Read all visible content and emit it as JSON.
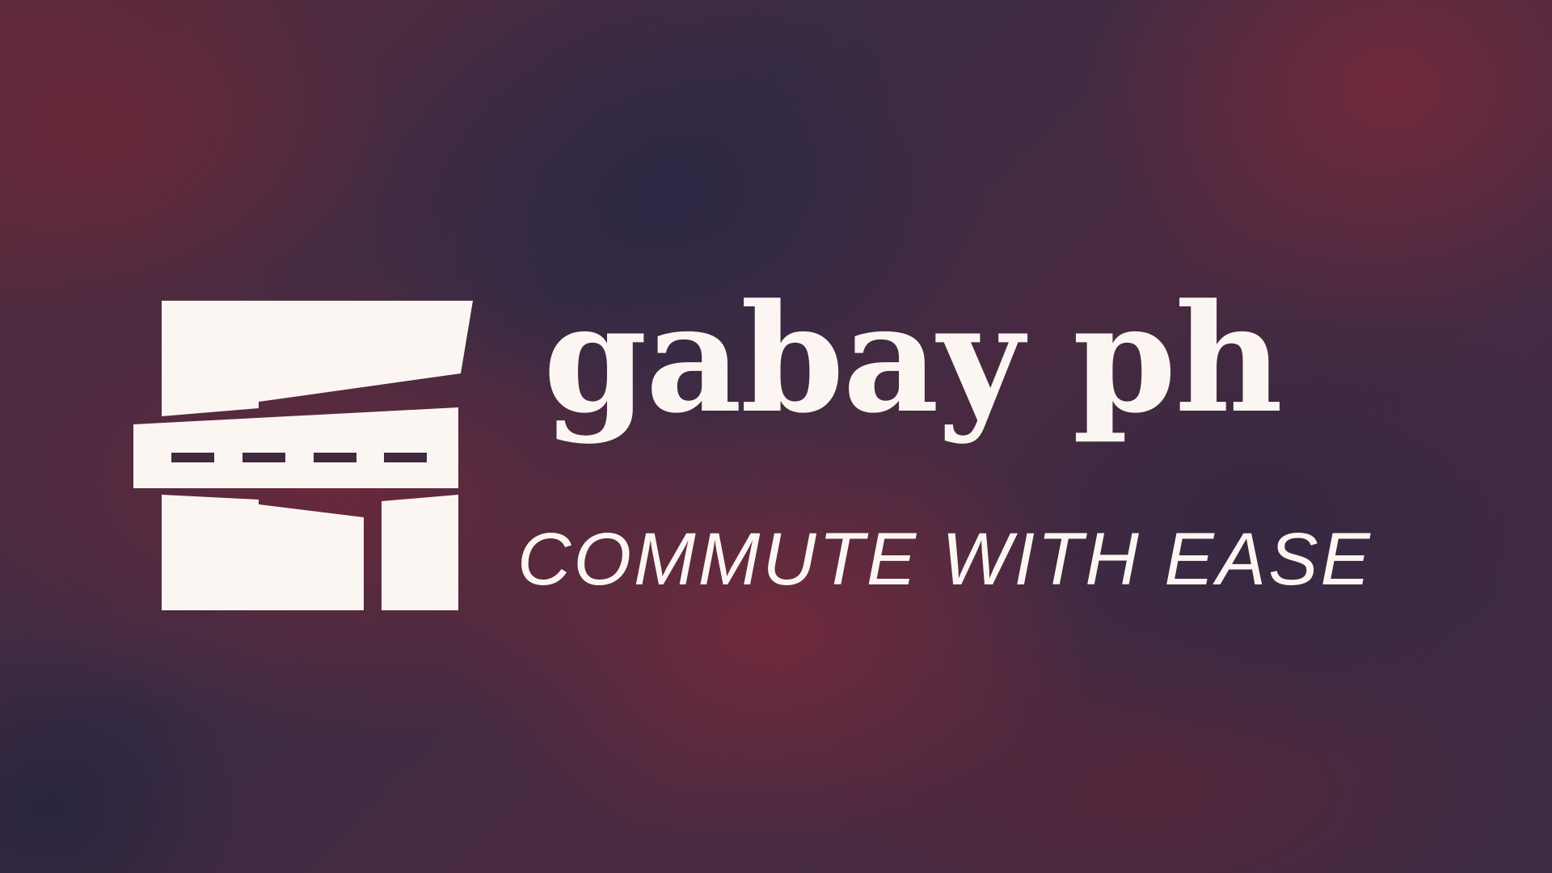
{
  "brand": {
    "name": "gabay ph",
    "tagline": "COMMUTE WITH EASE"
  },
  "icons": {
    "logo": "train-station-platform-icon"
  },
  "colors": {
    "text": "#fbf6f1",
    "background_primary": "#3a2c44",
    "background_accent": "#6e2a3a"
  }
}
